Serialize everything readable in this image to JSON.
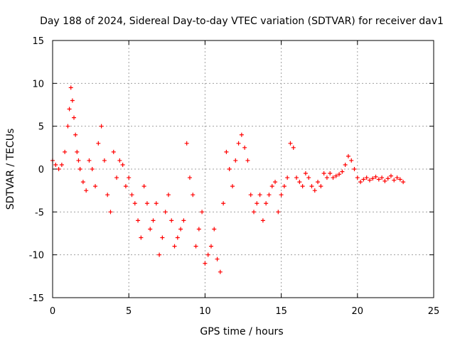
{
  "chart_data": {
    "type": "scatter",
    "title": "Day 188 of 2024, Sidereal Day-to-day VTEC variation (SDTVAR) for receiver dav1",
    "xlabel": "GPS time / hours",
    "ylabel": "SDTVAR / TECUs",
    "xlim": [
      0,
      25
    ],
    "ylim": [
      -15,
      15
    ],
    "xticks": [
      0,
      5,
      10,
      15,
      20,
      25
    ],
    "yticks": [
      -15,
      -10,
      -5,
      0,
      5,
      10,
      15
    ],
    "grid": true,
    "marker": "+",
    "color": "#ff0000",
    "series": [
      {
        "name": "SDTVAR dav1",
        "x": [
          0.0,
          0.2,
          0.4,
          0.6,
          0.8,
          1.0,
          1.1,
          1.2,
          1.3,
          1.4,
          1.5,
          1.6,
          1.7,
          1.8,
          2.0,
          2.2,
          2.4,
          2.6,
          2.8,
          3.0,
          3.2,
          3.4,
          3.6,
          3.8,
          4.0,
          4.2,
          4.4,
          4.6,
          4.8,
          5.0,
          5.2,
          5.4,
          5.6,
          5.8,
          6.0,
          6.2,
          6.4,
          6.6,
          6.8,
          7.0,
          7.2,
          7.4,
          7.6,
          7.8,
          8.0,
          8.2,
          8.4,
          8.6,
          8.8,
          9.0,
          9.2,
          9.4,
          9.6,
          9.8,
          10.0,
          10.2,
          10.4,
          10.6,
          10.8,
          11.0,
          11.2,
          11.4,
          11.6,
          11.8,
          12.0,
          12.2,
          12.4,
          12.6,
          12.8,
          13.0,
          13.2,
          13.4,
          13.6,
          13.8,
          14.0,
          14.2,
          14.4,
          14.6,
          14.8,
          15.0,
          15.2,
          15.4,
          15.6,
          15.8,
          16.0,
          16.2,
          16.4,
          16.6,
          16.8,
          17.0,
          17.2,
          17.4,
          17.6,
          17.8,
          18.0,
          18.2,
          18.4,
          18.6,
          18.8,
          19.0,
          19.2,
          19.4,
          19.6,
          19.8,
          20.0,
          20.2,
          20.4,
          20.6,
          20.8,
          21.0,
          21.2,
          21.4,
          21.6,
          21.8,
          22.0,
          22.2,
          22.4,
          22.6,
          22.8,
          23.0
        ],
        "y": [
          1.0,
          0.5,
          0.0,
          0.5,
          2.0,
          5.0,
          7.0,
          9.5,
          8.0,
          6.0,
          4.0,
          2.0,
          1.0,
          0.0,
          -1.5,
          -2.5,
          1.0,
          0.0,
          -2.0,
          3.0,
          5.0,
          1.0,
          -3.0,
          -5.0,
          2.0,
          -1.0,
          1.0,
          0.5,
          -2.0,
          -1.0,
          -3.0,
          -4.0,
          -6.0,
          -8.0,
          -2.0,
          -4.0,
          -7.0,
          -6.0,
          -4.0,
          -10.0,
          -8.0,
          -5.0,
          -3.0,
          -6.0,
          -9.0,
          -8.0,
          -7.0,
          -6.0,
          3.0,
          -1.0,
          -3.0,
          -9.0,
          -7.0,
          -5.0,
          -11.0,
          -10.0,
          -9.0,
          -7.0,
          -10.5,
          -12.0,
          -4.0,
          2.0,
          0.0,
          -2.0,
          1.0,
          3.0,
          4.0,
          2.5,
          1.0,
          -3.0,
          -5.0,
          -4.0,
          -3.0,
          -6.0,
          -4.0,
          -3.0,
          -2.0,
          -1.5,
          -5.0,
          -3.0,
          -2.0,
          -1.0,
          3.0,
          2.5,
          -1.0,
          -1.5,
          -2.0,
          -0.5,
          -1.0,
          -2.0,
          -2.5,
          -1.5,
          -2.0,
          -0.5,
          -1.0,
          -0.5,
          -1.0,
          -0.8,
          -0.6,
          -0.3,
          0.5,
          1.5,
          1.0,
          0.0,
          -1.0,
          -1.5,
          -1.2,
          -1.0,
          -1.3,
          -1.1,
          -0.9,
          -1.2,
          -1.0,
          -1.4,
          -1.1,
          -0.8,
          -1.3,
          -1.0,
          -1.2,
          -1.5
        ]
      }
    ]
  }
}
